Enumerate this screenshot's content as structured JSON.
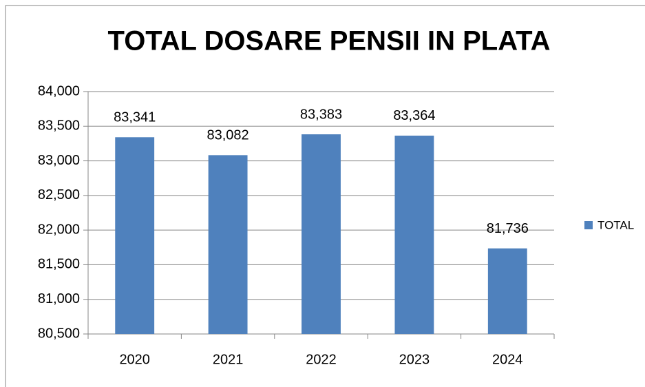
{
  "chart_data": {
    "type": "bar",
    "title": "TOTAL DOSARE PENSII IN PLATA",
    "categories": [
      "2020",
      "2021",
      "2022",
      "2023",
      "2024"
    ],
    "series": [
      {
        "name": "TOTAL",
        "color": "#4f81bd",
        "values": [
          83341,
          83082,
          83383,
          83364,
          81736
        ],
        "value_labels": [
          "83,341",
          "83,082",
          "83,383",
          "83,364",
          "81,736"
        ]
      }
    ],
    "ylim": [
      80500,
      84000
    ],
    "yticks": [
      {
        "value": 80500,
        "label": "80,500"
      },
      {
        "value": 81000,
        "label": "81,000"
      },
      {
        "value": 81500,
        "label": "81,500"
      },
      {
        "value": 82000,
        "label": "82,000"
      },
      {
        "value": 82500,
        "label": "82,500"
      },
      {
        "value": 83000,
        "label": "83,000"
      },
      {
        "value": 83500,
        "label": "83,500"
      },
      {
        "value": 84000,
        "label": "84,000"
      }
    ],
    "grid": true,
    "legend": "right"
  }
}
